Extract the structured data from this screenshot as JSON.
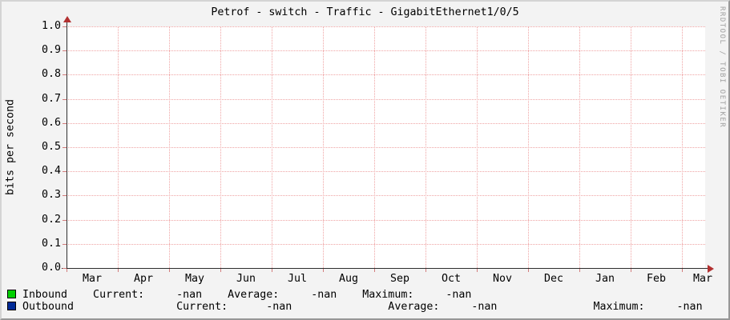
{
  "watermark": "RRDTOOL / TOBI OETIKER",
  "chart_data": {
    "type": "line",
    "title": "Petrof - switch - Traffic - GigabitEthernet1/0/5",
    "xlabel": "",
    "ylabel": "bits per second",
    "ylim": [
      0.0,
      1.0
    ],
    "y_ticks": [
      "0.0",
      "0.1",
      "0.2",
      "0.3",
      "0.4",
      "0.5",
      "0.6",
      "0.7",
      "0.8",
      "0.9",
      "1.0"
    ],
    "x_ticks": [
      "Mar",
      "Apr",
      "May",
      "Jun",
      "Jul",
      "Aug",
      "Sep",
      "Oct",
      "Nov",
      "Dec",
      "Jan",
      "Feb",
      "Mar"
    ],
    "grid": true,
    "legend_position": "bottom",
    "series": [
      {
        "name": "Inbound",
        "color": "#00CF00",
        "values": [],
        "current": "-nan",
        "average": "-nan",
        "maximum": "-nan"
      },
      {
        "name": "Outbound",
        "color": "#002A97",
        "values": [],
        "current": "-nan",
        "average": "-nan",
        "maximum": "-nan"
      }
    ]
  },
  "legend": {
    "rows": [
      {
        "color": "#00CF00",
        "text": "Inbound    Current:     -nan    Average:     -nan    Maximum:     -nan"
      },
      {
        "color": "#002A97",
        "text": "Outbound                Current:      -nan               Average:     -nan               Maximum:     -nan"
      }
    ]
  },
  "colors": {
    "background": "#f3f3f3",
    "canvas": "#ffffff",
    "major_grid": "#efa4a4",
    "tick": "#d27c7c",
    "axis": "#2e2e2e",
    "arrow": "#b23030",
    "inbound": "#00CF00",
    "outbound": "#002A97",
    "watermark": "#a0a0a0"
  }
}
